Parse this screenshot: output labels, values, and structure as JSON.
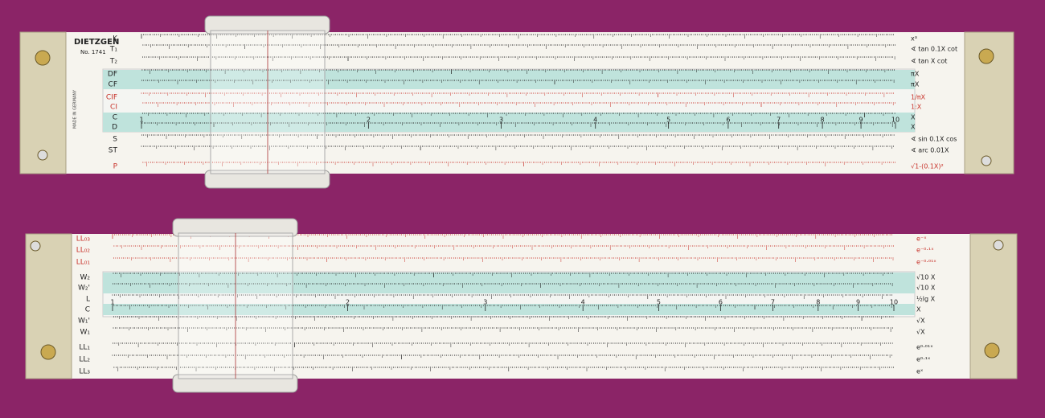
{
  "top_rule": {
    "brand": "DIETZGEN",
    "model": "No. 1741",
    "origin": "MADE IN GERMANY",
    "scales": [
      {
        "left": "K",
        "right": "x³",
        "color": "#222"
      },
      {
        "left": "T₁",
        "right": "∢ tan 0.1X cot",
        "color": "#222"
      },
      {
        "left": "T₂",
        "right": "∢ tan X cot",
        "color": "#222"
      },
      {
        "left": "DF",
        "right": "πX",
        "color": "#222"
      },
      {
        "left": "CF",
        "right": "πX",
        "color": "#222"
      },
      {
        "left": "CIF",
        "right": "1/πX",
        "color": "#c8332b"
      },
      {
        "left": "CI",
        "right": "1:X",
        "color": "#c8332b"
      },
      {
        "left": "C",
        "right": "X",
        "color": "#222"
      },
      {
        "left": "D",
        "right": "X",
        "color": "#222"
      },
      {
        "left": "S",
        "right": "∢ sin 0.1X cos",
        "color": "#222"
      },
      {
        "left": "ST",
        "right": "∢ arc 0.01X",
        "color": "#222"
      },
      {
        "left": "P",
        "right": "√1-(0.1X)²",
        "color": "#c8332b"
      }
    ],
    "d_numbers": [
      1,
      2,
      3,
      4,
      5,
      6,
      7,
      8,
      9,
      10
    ]
  },
  "bottom_rule": {
    "scales": [
      {
        "left": "LL₀₃",
        "right": "e⁻ˣ",
        "color": "#c8332b"
      },
      {
        "left": "LL₀₂",
        "right": "e⁻⁰·¹ˣ",
        "color": "#c8332b"
      },
      {
        "left": "LL₀₁",
        "right": "e⁻⁰·⁰¹ˣ",
        "color": "#c8332b"
      },
      {
        "left": "W₂",
        "right": "√10 X",
        "color": "#222"
      },
      {
        "left": "W₂'",
        "right": "√10 X",
        "color": "#222"
      },
      {
        "left": "L",
        "right": "½lg X",
        "color": "#222"
      },
      {
        "left": "C",
        "right": "X",
        "color": "#222"
      },
      {
        "left": "W₁'",
        "right": "√X",
        "color": "#222"
      },
      {
        "left": "W₁",
        "right": "√X",
        "color": "#222"
      },
      {
        "left": "LL₁",
        "right": "e⁰·⁰¹ˣ",
        "color": "#222"
      },
      {
        "left": "LL₂",
        "right": "e⁰·¹ˣ",
        "color": "#222"
      },
      {
        "left": "LL₃",
        "right": "eˣ",
        "color": "#222"
      }
    ],
    "c_numbers": [
      1,
      2,
      3,
      4,
      5,
      6,
      7,
      8,
      9,
      10
    ]
  }
}
